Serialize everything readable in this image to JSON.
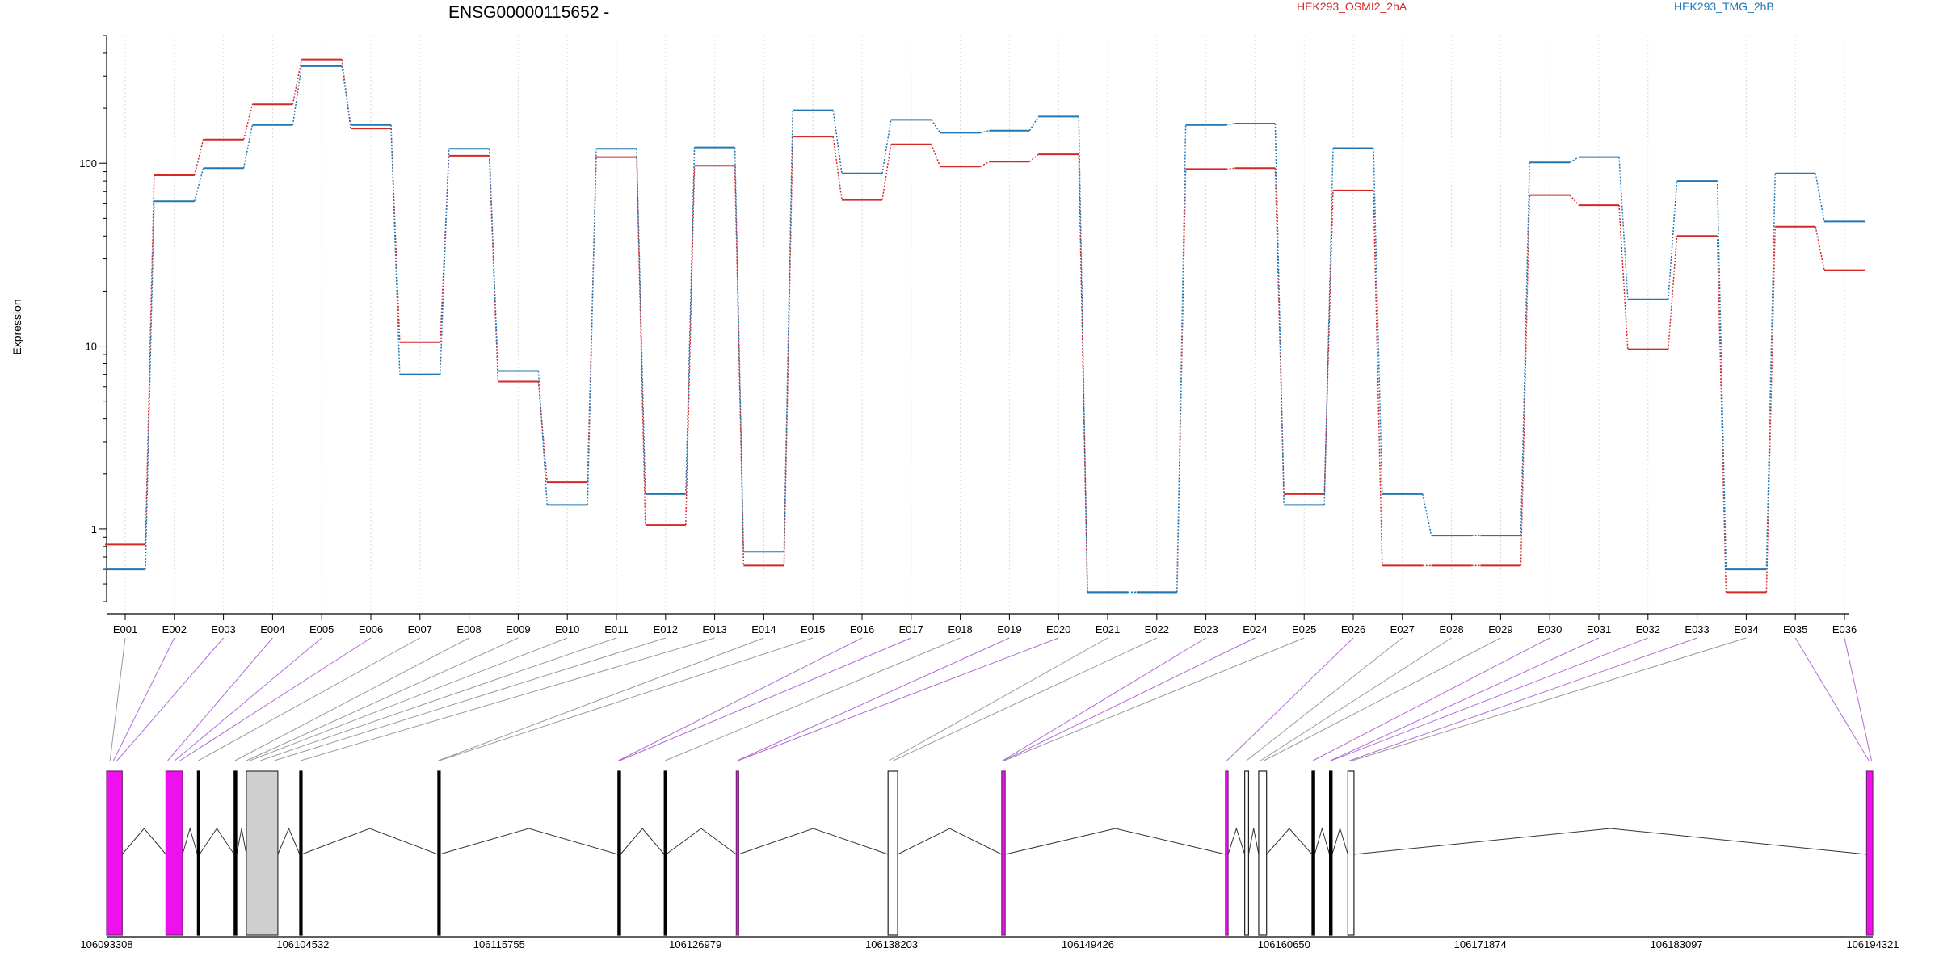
{
  "chart_data": {
    "type": "line",
    "title": "ENSG00000115652 -",
    "ylabel": "Expression",
    "xlabel": "",
    "yscale": "log",
    "ylim": [
      0.4,
      500
    ],
    "yticks": [
      "1",
      "10",
      "100"
    ],
    "yticks_values": [
      1,
      10,
      100
    ],
    "grid": "vertical dotted",
    "legend_placement": "top-right",
    "categories": [
      "E001",
      "E002",
      "E003",
      "E004",
      "E005",
      "E006",
      "E007",
      "E008",
      "E009",
      "E010",
      "E011",
      "E012",
      "E013",
      "E014",
      "E015",
      "E016",
      "E017",
      "E018",
      "E019",
      "E020",
      "E021",
      "E022",
      "E023",
      "E024",
      "E025",
      "E026",
      "E027",
      "E028",
      "E029",
      "E030",
      "E031",
      "E032",
      "E033",
      "E034",
      "E035",
      "E036"
    ],
    "series": [
      {
        "name": "HEK293_OSMI2_2hA",
        "color": "#d62728",
        "values": [
          0.82,
          86,
          135,
          210,
          370,
          155,
          10.5,
          110,
          6.4,
          1.8,
          108,
          1.05,
          97,
          0.63,
          140,
          63,
          127,
          96,
          102,
          112,
          0.45,
          0.45,
          93,
          94,
          1.55,
          71,
          0.63,
          0.63,
          0.63,
          67,
          59,
          9.6,
          40,
          0.45,
          45,
          26
        ]
      },
      {
        "name": "HEK293_TMG_2hB",
        "color": "#1f77b4",
        "values": [
          0.6,
          62,
          94,
          162,
          340,
          162,
          7.0,
          120,
          7.3,
          1.35,
          120,
          1.55,
          122,
          0.75,
          195,
          88,
          173,
          147,
          151,
          180,
          0.45,
          0.45,
          162,
          165,
          1.35,
          121,
          1.55,
          0.92,
          0.92,
          101,
          108,
          18,
          80,
          0.6,
          88,
          48
        ]
      }
    ],
    "genomic_axis_labels": [
      "106093308",
      "106104532",
      "106115755",
      "106126979",
      "106138203",
      "106149426",
      "106160650",
      "106171874",
      "106183097",
      "106194321"
    ],
    "gene_model": {
      "start": 106093308,
      "end": 106194321,
      "highlight_color": "#ee11ee",
      "exons": [
        {
          "s": 106093308,
          "e": 106094200,
          "kind": "diff"
        },
        {
          "s": 106096700,
          "e": 106097650,
          "kind": "diff"
        },
        {
          "s": 106098500,
          "e": 106098620,
          "kind": "plain"
        },
        {
          "s": 106100600,
          "e": 106100750,
          "kind": "plain"
        },
        {
          "s": 106101300,
          "e": 106103100,
          "kind": "shaded"
        },
        {
          "s": 106104350,
          "e": 106104460,
          "kind": "plain"
        },
        {
          "s": 106112250,
          "e": 106112350,
          "kind": "plain"
        },
        {
          "s": 106122550,
          "e": 106122700,
          "kind": "plain"
        },
        {
          "s": 106125200,
          "e": 106125300,
          "kind": "plain"
        },
        {
          "s": 106129320,
          "e": 106129440,
          "kind": "diff"
        },
        {
          "s": 106138000,
          "e": 106138550,
          "kind": "open"
        },
        {
          "s": 106144500,
          "e": 106144700,
          "kind": "diff"
        },
        {
          "s": 106157300,
          "e": 106157450,
          "kind": "diff"
        },
        {
          "s": 106158400,
          "e": 106158620,
          "kind": "open"
        },
        {
          "s": 106159200,
          "e": 106159650,
          "kind": "open"
        },
        {
          "s": 106162250,
          "e": 106162400,
          "kind": "plain"
        },
        {
          "s": 106163250,
          "e": 106163400,
          "kind": "plain"
        },
        {
          "s": 106164300,
          "e": 106164650,
          "kind": "open"
        },
        {
          "s": 106193970,
          "e": 106194321,
          "kind": "diff"
        }
      ],
      "exon_bins": [
        {
          "id": "E001",
          "pos": 106093500,
          "diff": false
        },
        {
          "id": "E002",
          "pos": 106093700,
          "diff": true
        },
        {
          "id": "E003",
          "pos": 106093900,
          "diff": true
        },
        {
          "id": "E004",
          "pos": 106096800,
          "diff": true
        },
        {
          "id": "E005",
          "pos": 106097200,
          "diff": true
        },
        {
          "id": "E006",
          "pos": 106097500,
          "diff": true
        },
        {
          "id": "E007",
          "pos": 106098550,
          "diff": false
        },
        {
          "id": "E008",
          "pos": 106100650,
          "diff": false
        },
        {
          "id": "E009",
          "pos": 106101300,
          "diff": false
        },
        {
          "id": "E010",
          "pos": 106101500,
          "diff": false
        },
        {
          "id": "E011",
          "pos": 106102100,
          "diff": false
        },
        {
          "id": "E012",
          "pos": 106102900,
          "diff": false
        },
        {
          "id": "E013",
          "pos": 106104400,
          "diff": false
        },
        {
          "id": "E014",
          "pos": 106112280,
          "diff": false
        },
        {
          "id": "E015",
          "pos": 106112330,
          "diff": false
        },
        {
          "id": "E016",
          "pos": 106122580,
          "diff": true
        },
        {
          "id": "E017",
          "pos": 106122650,
          "diff": true
        },
        {
          "id": "E018",
          "pos": 106125250,
          "diff": false
        },
        {
          "id": "E019",
          "pos": 106129380,
          "diff": true
        },
        {
          "id": "E020",
          "pos": 106129420,
          "diff": true
        },
        {
          "id": "E021",
          "pos": 106138050,
          "diff": false
        },
        {
          "id": "E022",
          "pos": 106138300,
          "diff": false
        },
        {
          "id": "E023",
          "pos": 106144550,
          "diff": true
        },
        {
          "id": "E024",
          "pos": 106144600,
          "diff": true
        },
        {
          "id": "E025",
          "pos": 106144650,
          "diff": false
        },
        {
          "id": "E026",
          "pos": 106157380,
          "diff": true
        },
        {
          "id": "E027",
          "pos": 106158500,
          "diff": false
        },
        {
          "id": "E028",
          "pos": 106159300,
          "diff": false
        },
        {
          "id": "E029",
          "pos": 106159500,
          "diff": false
        },
        {
          "id": "E030",
          "pos": 106162300,
          "diff": true
        },
        {
          "id": "E031",
          "pos": 106163300,
          "diff": true
        },
        {
          "id": "E032",
          "pos": 106163350,
          "diff": true
        },
        {
          "id": "E033",
          "pos": 106164400,
          "diff": true
        },
        {
          "id": "E034",
          "pos": 106164550,
          "diff": false
        },
        {
          "id": "E035",
          "pos": 106194100,
          "diff": true
        },
        {
          "id": "E036",
          "pos": 106194250,
          "diff": true
        }
      ]
    }
  }
}
